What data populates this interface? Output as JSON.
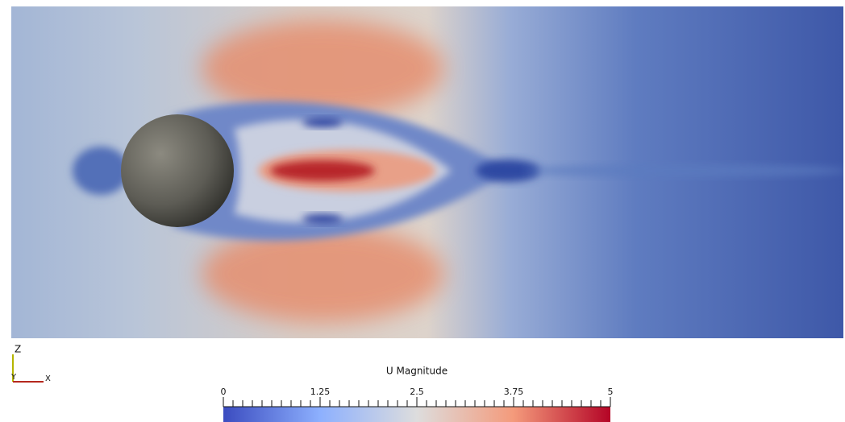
{
  "colorbar": {
    "title": "U Magnitude",
    "range": [
      0,
      5
    ],
    "ticks": [
      0,
      1.25,
      2.5,
      3.75,
      5
    ]
  },
  "axes": {
    "z": "Z",
    "y": "Y",
    "x": "X"
  }
}
